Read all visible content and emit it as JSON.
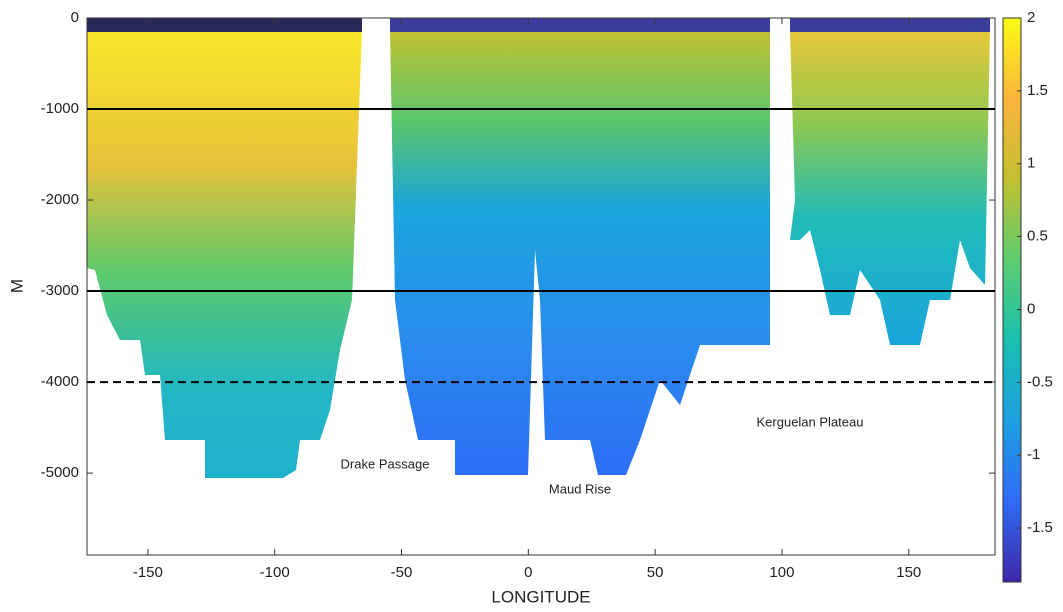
{
  "chart_data": {
    "type": "contour",
    "xlabel": "LONGITUDE",
    "ylabel": "M",
    "xlim": [
      -174,
      184
    ],
    "xticks": [
      -150,
      -100,
      -50,
      0,
      50,
      100,
      150
    ],
    "ylim": [
      -5900,
      0
    ],
    "yticks": [
      0,
      -1000,
      -2000,
      -3000,
      -4000,
      -5000
    ],
    "hlines": [
      {
        "value": -1000,
        "style": "solid"
      },
      {
        "value": -3000,
        "style": "solid"
      },
      {
        "value": -4000,
        "style": "dashed"
      }
    ],
    "annotations": [
      "Drake Passage",
      "Maud Rise",
      "Kerguelan Plateau"
    ],
    "colorbar": {
      "clim": [
        -1.87,
        2
      ],
      "ticks": [
        2,
        1.5,
        1,
        0.5,
        0,
        -0.5,
        -1,
        -1.5
      ],
      "colormap": [
        "#3e26a8",
        "#2f6cf6",
        "#1ca0e0",
        "#19c0b0",
        "#5ccd6e",
        "#c2c02e",
        "#fbb53a",
        "#f9fb15"
      ]
    }
  }
}
